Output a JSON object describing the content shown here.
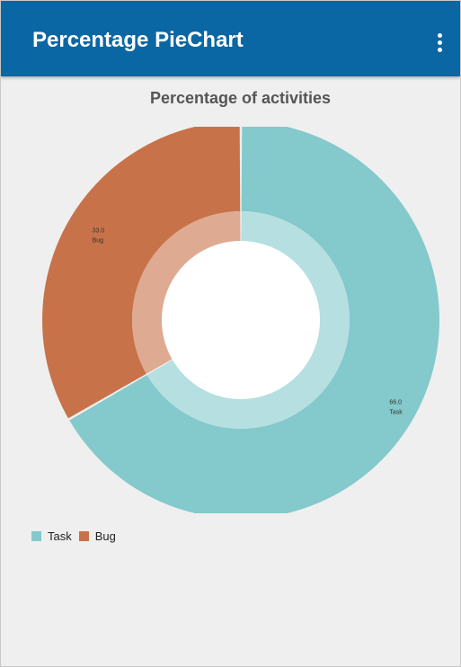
{
  "appbar": {
    "title": "Percentage PieChart",
    "menu_icon": "more-vert-icon"
  },
  "chart_data": {
    "type": "pie",
    "title": "Percentage of activities",
    "style": "donut",
    "legend_position": "bottom-left",
    "slices": [
      {
        "label": "Task",
        "value": 66.0,
        "value_text": "66.0",
        "color": "#84c9cb"
      },
      {
        "label": "Bug",
        "value": 33.0,
        "value_text": "33.0",
        "color": "#c8724a"
      }
    ]
  },
  "colors": {
    "appbar": "#0a67a3",
    "background": "#efefef"
  }
}
